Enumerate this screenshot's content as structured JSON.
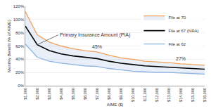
{
  "chart_data": {
    "type": "line",
    "x_label": "AIME ($)",
    "y_label": "Monthly Benefit (% of AIME)",
    "x": [
      1000,
      2000,
      3000,
      4000,
      5000,
      6000,
      7000,
      8000,
      9000,
      10000,
      11000,
      12000,
      13000,
      14000,
      15000,
      16000
    ],
    "series": [
      {
        "name": "File at 62",
        "color": "#8db3e2",
        "values": [
          63,
          43,
          37,
          34,
          32,
          30,
          29,
          26,
          24,
          22,
          21,
          20,
          20,
          19,
          18,
          17.5
        ]
      },
      {
        "name": "File at 67 (NRA)",
        "color": "#000000",
        "values": [
          90,
          62,
          53,
          48,
          45,
          43,
          41,
          37,
          34,
          32,
          30,
          29,
          28,
          27,
          26,
          25
        ]
      },
      {
        "name": "File at 70",
        "color": "#f4a15d",
        "values": [
          112,
          77,
          66,
          60,
          56,
          53,
          51,
          46,
          42,
          40,
          37,
          36,
          35,
          33,
          32,
          31
        ]
      }
    ],
    "annotations": [
      {
        "text": "Primary Insurance Amount (PIA)",
        "x": 2000,
        "y": 62
      },
      {
        "text": "45%",
        "x": 7000,
        "y": 51
      },
      {
        "text": "27%",
        "x": 14000,
        "y": 33
      }
    ],
    "xlim": [
      1000,
      16000
    ],
    "xticks": [
      {
        "value": 1000,
        "label": "$1,000"
      },
      {
        "value": 2000,
        "label": "$2,000"
      },
      {
        "value": 3000,
        "label": "$3,000"
      },
      {
        "value": 4000,
        "label": "$4,000"
      },
      {
        "value": 5000,
        "label": "$5,000"
      },
      {
        "value": 6000,
        "label": "$6,000"
      },
      {
        "value": 7000,
        "label": "$7,000"
      },
      {
        "value": 8000,
        "label": "$8,000"
      },
      {
        "value": 9000,
        "label": "$9,000"
      },
      {
        "value": 10000,
        "label": "$10,000"
      },
      {
        "value": 11000,
        "label": "$11,000"
      },
      {
        "value": 12000,
        "label": "$12,000"
      },
      {
        "value": 13000,
        "label": "$13,000"
      },
      {
        "value": 14000,
        "label": "$14,000"
      },
      {
        "value": 15000,
        "label": "$15,000"
      },
      {
        "value": 16000,
        "label": "$16,000"
      }
    ],
    "ylim": [
      0,
      120
    ],
    "yticks": [
      {
        "value": 0,
        "label": "0%"
      },
      {
        "value": 20,
        "label": "20%"
      },
      {
        "value": 40,
        "label": "40%"
      },
      {
        "value": 60,
        "label": "60%"
      },
      {
        "value": 80,
        "label": "80%"
      },
      {
        "value": 100,
        "label": "100%"
      },
      {
        "value": 120,
        "label": "120%"
      }
    ],
    "grid": true,
    "legend": "top-right"
  }
}
